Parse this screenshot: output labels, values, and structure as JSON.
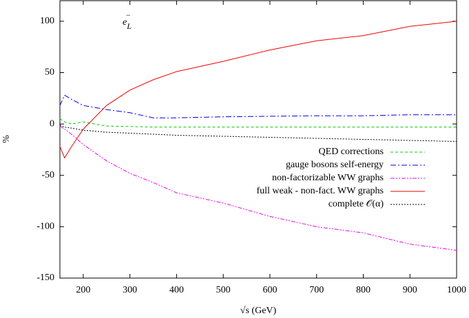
{
  "chart_data": {
    "type": "line",
    "title": {
      "base": "e",
      "sub": "L",
      "sup": "−"
    },
    "xlabel": "√s (GeV)",
    "ylabel": "%",
    "x": [
      150,
      160,
      175,
      200,
      250,
      300,
      350,
      400,
      500,
      600,
      700,
      800,
      900,
      1000
    ],
    "series": [
      {
        "name": "QED corrections",
        "color": "#00cc00",
        "style": "dashed",
        "values": [
          5,
          2,
          0,
          2,
          -2,
          -2.5,
          -3,
          -3,
          -3,
          -3,
          -3,
          -3,
          -3,
          -3
        ]
      },
      {
        "name": "gauge bosons self-energy",
        "color": "#0000dd",
        "style": "dashdot",
        "values": [
          18,
          28,
          24,
          18,
          14,
          11,
          6,
          6,
          7,
          7.5,
          8,
          8,
          9,
          9
        ]
      },
      {
        "name": "non-factorizable WW graphs",
        "color": "#ee00ee",
        "style": "dashdotdot",
        "values": [
          -2,
          -5,
          -10,
          -20,
          -36,
          -48,
          -57,
          -67,
          -77,
          -90,
          -100,
          -106,
          -117,
          -123
        ]
      },
      {
        "name": "full weak - non-fact. WW graphs",
        "color": "#ee0000",
        "style": "solid",
        "values": [
          -22,
          -33,
          -22,
          -5,
          18,
          33,
          43,
          51,
          61,
          72,
          81,
          86,
          95,
          100
        ]
      },
      {
        "name": "complete 𝒪(α)",
        "color": "#000000",
        "style": "dotted",
        "values": [
          -1,
          -3,
          -4,
          -6,
          -8,
          -9,
          -10,
          -11,
          -12,
          -13,
          -14,
          -15,
          -16,
          -17
        ]
      }
    ],
    "xlim": [
      150,
      1000
    ],
    "xticks": [
      200,
      300,
      400,
      500,
      600,
      700,
      800,
      900,
      1000
    ],
    "ylim": [
      -150,
      120
    ],
    "yticks": [
      -150,
      -100,
      -50,
      0,
      50,
      100
    ],
    "legend": "right"
  }
}
